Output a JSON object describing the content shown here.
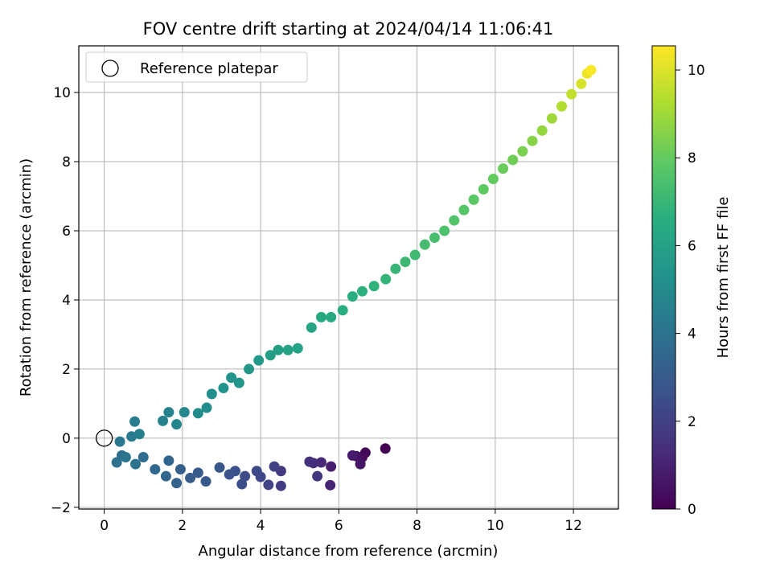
{
  "chart_data": {
    "type": "scatter",
    "title": "FOV centre drift starting at 2024/04/14 11:06:41",
    "xlabel": "Angular distance from reference (arcmin)",
    "ylabel": "Rotation from reference (arcmin)",
    "xlim": [
      -0.65,
      13.15
    ],
    "ylim": [
      -2.05,
      11.35
    ],
    "xticks": [
      0,
      2,
      4,
      6,
      8,
      10,
      12
    ],
    "yticks": [
      -2,
      0,
      2,
      4,
      6,
      8,
      10
    ],
    "grid": true,
    "legend": {
      "location": "upper-left",
      "entries": [
        {
          "label": "Reference platepar",
          "marker": "hollow-circle",
          "x": 0,
          "y": 0
        }
      ]
    },
    "colorbar": {
      "label": "Hours from first FF file",
      "colormap": "viridis",
      "range": [
        0,
        10.55
      ],
      "ticks": [
        0,
        2,
        4,
        6,
        8,
        10
      ]
    },
    "series": [
      {
        "color_by": "hours",
        "points": [
          [
            7.19,
            -0.3,
            0.0
          ],
          [
            6.68,
            -0.42,
            0.15
          ],
          [
            6.6,
            -0.55,
            0.3
          ],
          [
            6.45,
            -0.52,
            0.45
          ],
          [
            6.55,
            -0.75,
            0.6
          ],
          [
            6.35,
            -0.5,
            0.75
          ],
          [
            5.8,
            -0.82,
            0.9
          ],
          [
            5.78,
            -1.36,
            1.05
          ],
          [
            5.55,
            -0.7,
            1.2
          ],
          [
            5.35,
            -0.72,
            1.35
          ],
          [
            5.25,
            -0.68,
            1.5
          ],
          [
            5.45,
            -1.1,
            1.62
          ],
          [
            4.52,
            -0.95,
            1.75
          ],
          [
            4.52,
            -1.38,
            1.9
          ],
          [
            4.35,
            -0.82,
            2.0
          ],
          [
            4.2,
            -1.35,
            2.1
          ],
          [
            4.0,
            -1.12,
            2.2
          ],
          [
            3.9,
            -0.95,
            2.3
          ],
          [
            3.6,
            -1.1,
            2.4
          ],
          [
            3.52,
            -1.33,
            2.5
          ],
          [
            3.35,
            -0.95,
            2.6
          ],
          [
            3.2,
            -1.05,
            2.7
          ],
          [
            2.95,
            -0.85,
            2.8
          ],
          [
            2.6,
            -1.25,
            2.9
          ],
          [
            2.4,
            -1.0,
            3.0
          ],
          [
            2.2,
            -1.15,
            3.1
          ],
          [
            1.95,
            -0.9,
            3.2
          ],
          [
            1.85,
            -1.3,
            3.3
          ],
          [
            1.65,
            -0.65,
            3.4
          ],
          [
            1.58,
            -1.1,
            3.5
          ],
          [
            1.3,
            -0.9,
            3.6
          ],
          [
            1.0,
            -0.55,
            3.7
          ],
          [
            0.45,
            -0.5,
            3.8
          ],
          [
            0.32,
            -0.7,
            3.9
          ],
          [
            0.8,
            -0.75,
            4.0
          ],
          [
            0.55,
            -0.55,
            4.1
          ],
          [
            0.4,
            -0.1,
            4.2
          ],
          [
            0.7,
            0.05,
            4.3
          ],
          [
            0.78,
            0.48,
            4.4
          ],
          [
            0.9,
            0.12,
            4.5
          ],
          [
            1.5,
            0.5,
            4.6
          ],
          [
            1.65,
            0.75,
            4.7
          ],
          [
            1.85,
            0.4,
            4.8
          ],
          [
            2.05,
            0.75,
            4.9
          ],
          [
            2.4,
            0.72,
            5.0
          ],
          [
            2.62,
            0.88,
            5.1
          ],
          [
            2.75,
            1.28,
            5.2
          ],
          [
            3.05,
            1.45,
            5.3
          ],
          [
            3.25,
            1.75,
            5.4
          ],
          [
            3.45,
            1.6,
            5.5
          ],
          [
            3.7,
            2.0,
            5.6
          ],
          [
            3.95,
            2.25,
            5.7
          ],
          [
            4.25,
            2.4,
            5.8
          ],
          [
            4.45,
            2.55,
            5.9
          ],
          [
            4.7,
            2.55,
            6.0
          ],
          [
            4.95,
            2.6,
            6.1
          ],
          [
            5.3,
            3.2,
            6.2
          ],
          [
            5.55,
            3.5,
            6.3
          ],
          [
            5.8,
            3.5,
            6.4
          ],
          [
            6.1,
            3.7,
            6.5
          ],
          [
            6.35,
            4.1,
            6.6
          ],
          [
            6.6,
            4.25,
            6.7
          ],
          [
            6.9,
            4.4,
            6.8
          ],
          [
            7.2,
            4.6,
            6.9
          ],
          [
            7.45,
            4.9,
            7.0
          ],
          [
            7.7,
            5.1,
            7.1
          ],
          [
            7.95,
            5.3,
            7.2
          ],
          [
            8.2,
            5.6,
            7.3
          ],
          [
            8.45,
            5.8,
            7.4
          ],
          [
            8.7,
            6.0,
            7.5
          ],
          [
            8.95,
            6.3,
            7.6
          ],
          [
            9.2,
            6.6,
            7.7
          ],
          [
            9.45,
            6.9,
            7.8
          ],
          [
            9.7,
            7.2,
            7.9
          ],
          [
            9.95,
            7.5,
            8.0
          ],
          [
            10.2,
            7.8,
            8.1
          ],
          [
            10.45,
            8.05,
            8.2
          ],
          [
            10.7,
            8.3,
            8.4
          ],
          [
            10.95,
            8.6,
            8.6
          ],
          [
            11.2,
            8.9,
            8.8
          ],
          [
            11.45,
            9.25,
            9.0
          ],
          [
            11.7,
            9.6,
            9.3
          ],
          [
            11.95,
            9.95,
            9.6
          ],
          [
            12.2,
            10.25,
            9.9
          ],
          [
            12.35,
            10.55,
            10.3
          ],
          [
            12.45,
            10.65,
            10.5
          ]
        ]
      }
    ]
  }
}
